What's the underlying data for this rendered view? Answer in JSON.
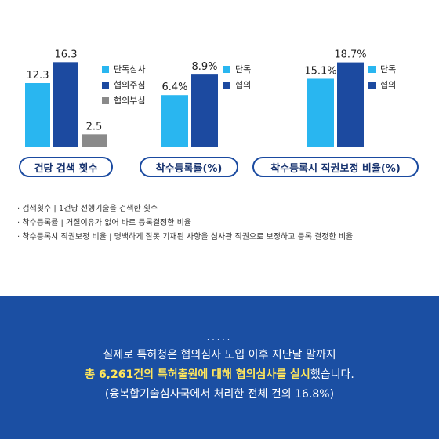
{
  "chart_data": [
    {
      "type": "bar",
      "title": "건당 검색 횟수",
      "categories": [
        "단독심사",
        "협의주심",
        "협의부심"
      ],
      "values": [
        12.3,
        16.3,
        2.5
      ],
      "labels": [
        "12.3",
        "16.3",
        "2.5"
      ],
      "colors": [
        "#29b6f0",
        "#1c4aa0",
        "#8a8a8a"
      ],
      "ylim": [
        0,
        18
      ],
      "legend": [
        "단독심사",
        "협의주심",
        "협의부심"
      ],
      "legend_position": "right"
    },
    {
      "type": "bar",
      "title": "착수등록률(%)",
      "categories": [
        "단독",
        "협의"
      ],
      "values": [
        6.4,
        8.9
      ],
      "labels": [
        "6.4%",
        "8.9%"
      ],
      "colors": [
        "#29b6f0",
        "#1c4aa0"
      ],
      "ylim": [
        0,
        11.5
      ],
      "legend": [
        "단독",
        "협의"
      ],
      "legend_position": "right"
    },
    {
      "type": "bar",
      "title": "착수등록시 직권보정 비율(%)",
      "categories": [
        "단독",
        "협의"
      ],
      "values": [
        15.1,
        18.7
      ],
      "labels": [
        "15.1%",
        "18.7%"
      ],
      "colors": [
        "#29b6f0",
        "#1c4aa0"
      ],
      "ylim": [
        0,
        20.7
      ],
      "legend": [
        "단독",
        "협의"
      ],
      "legend_position": "right"
    }
  ],
  "notes": [
    "· 검색횟수 | 1건당 선행기술을 검색한 횟수",
    "· 착수등록률 | 거절이유가 없어 바로 등록결정한 비율",
    "· 착수등록시 직권보정 비율 | 명백하게 잘못 기재된 사항을 심사관 직권으로 보정하고 등록 결정한 비율"
  ],
  "bottom": {
    "dots": ".....",
    "line1": "실제로 특허청은 협의심사 도입 이후 지난달 말까지",
    "line2_highlight": "총 6,261건의 특허출원에 대해 협의심사를 실시",
    "line2_rest": "했습니다.",
    "line3": "(융복합기술심사국에서 처리한 전체 건의 16.8%)"
  }
}
